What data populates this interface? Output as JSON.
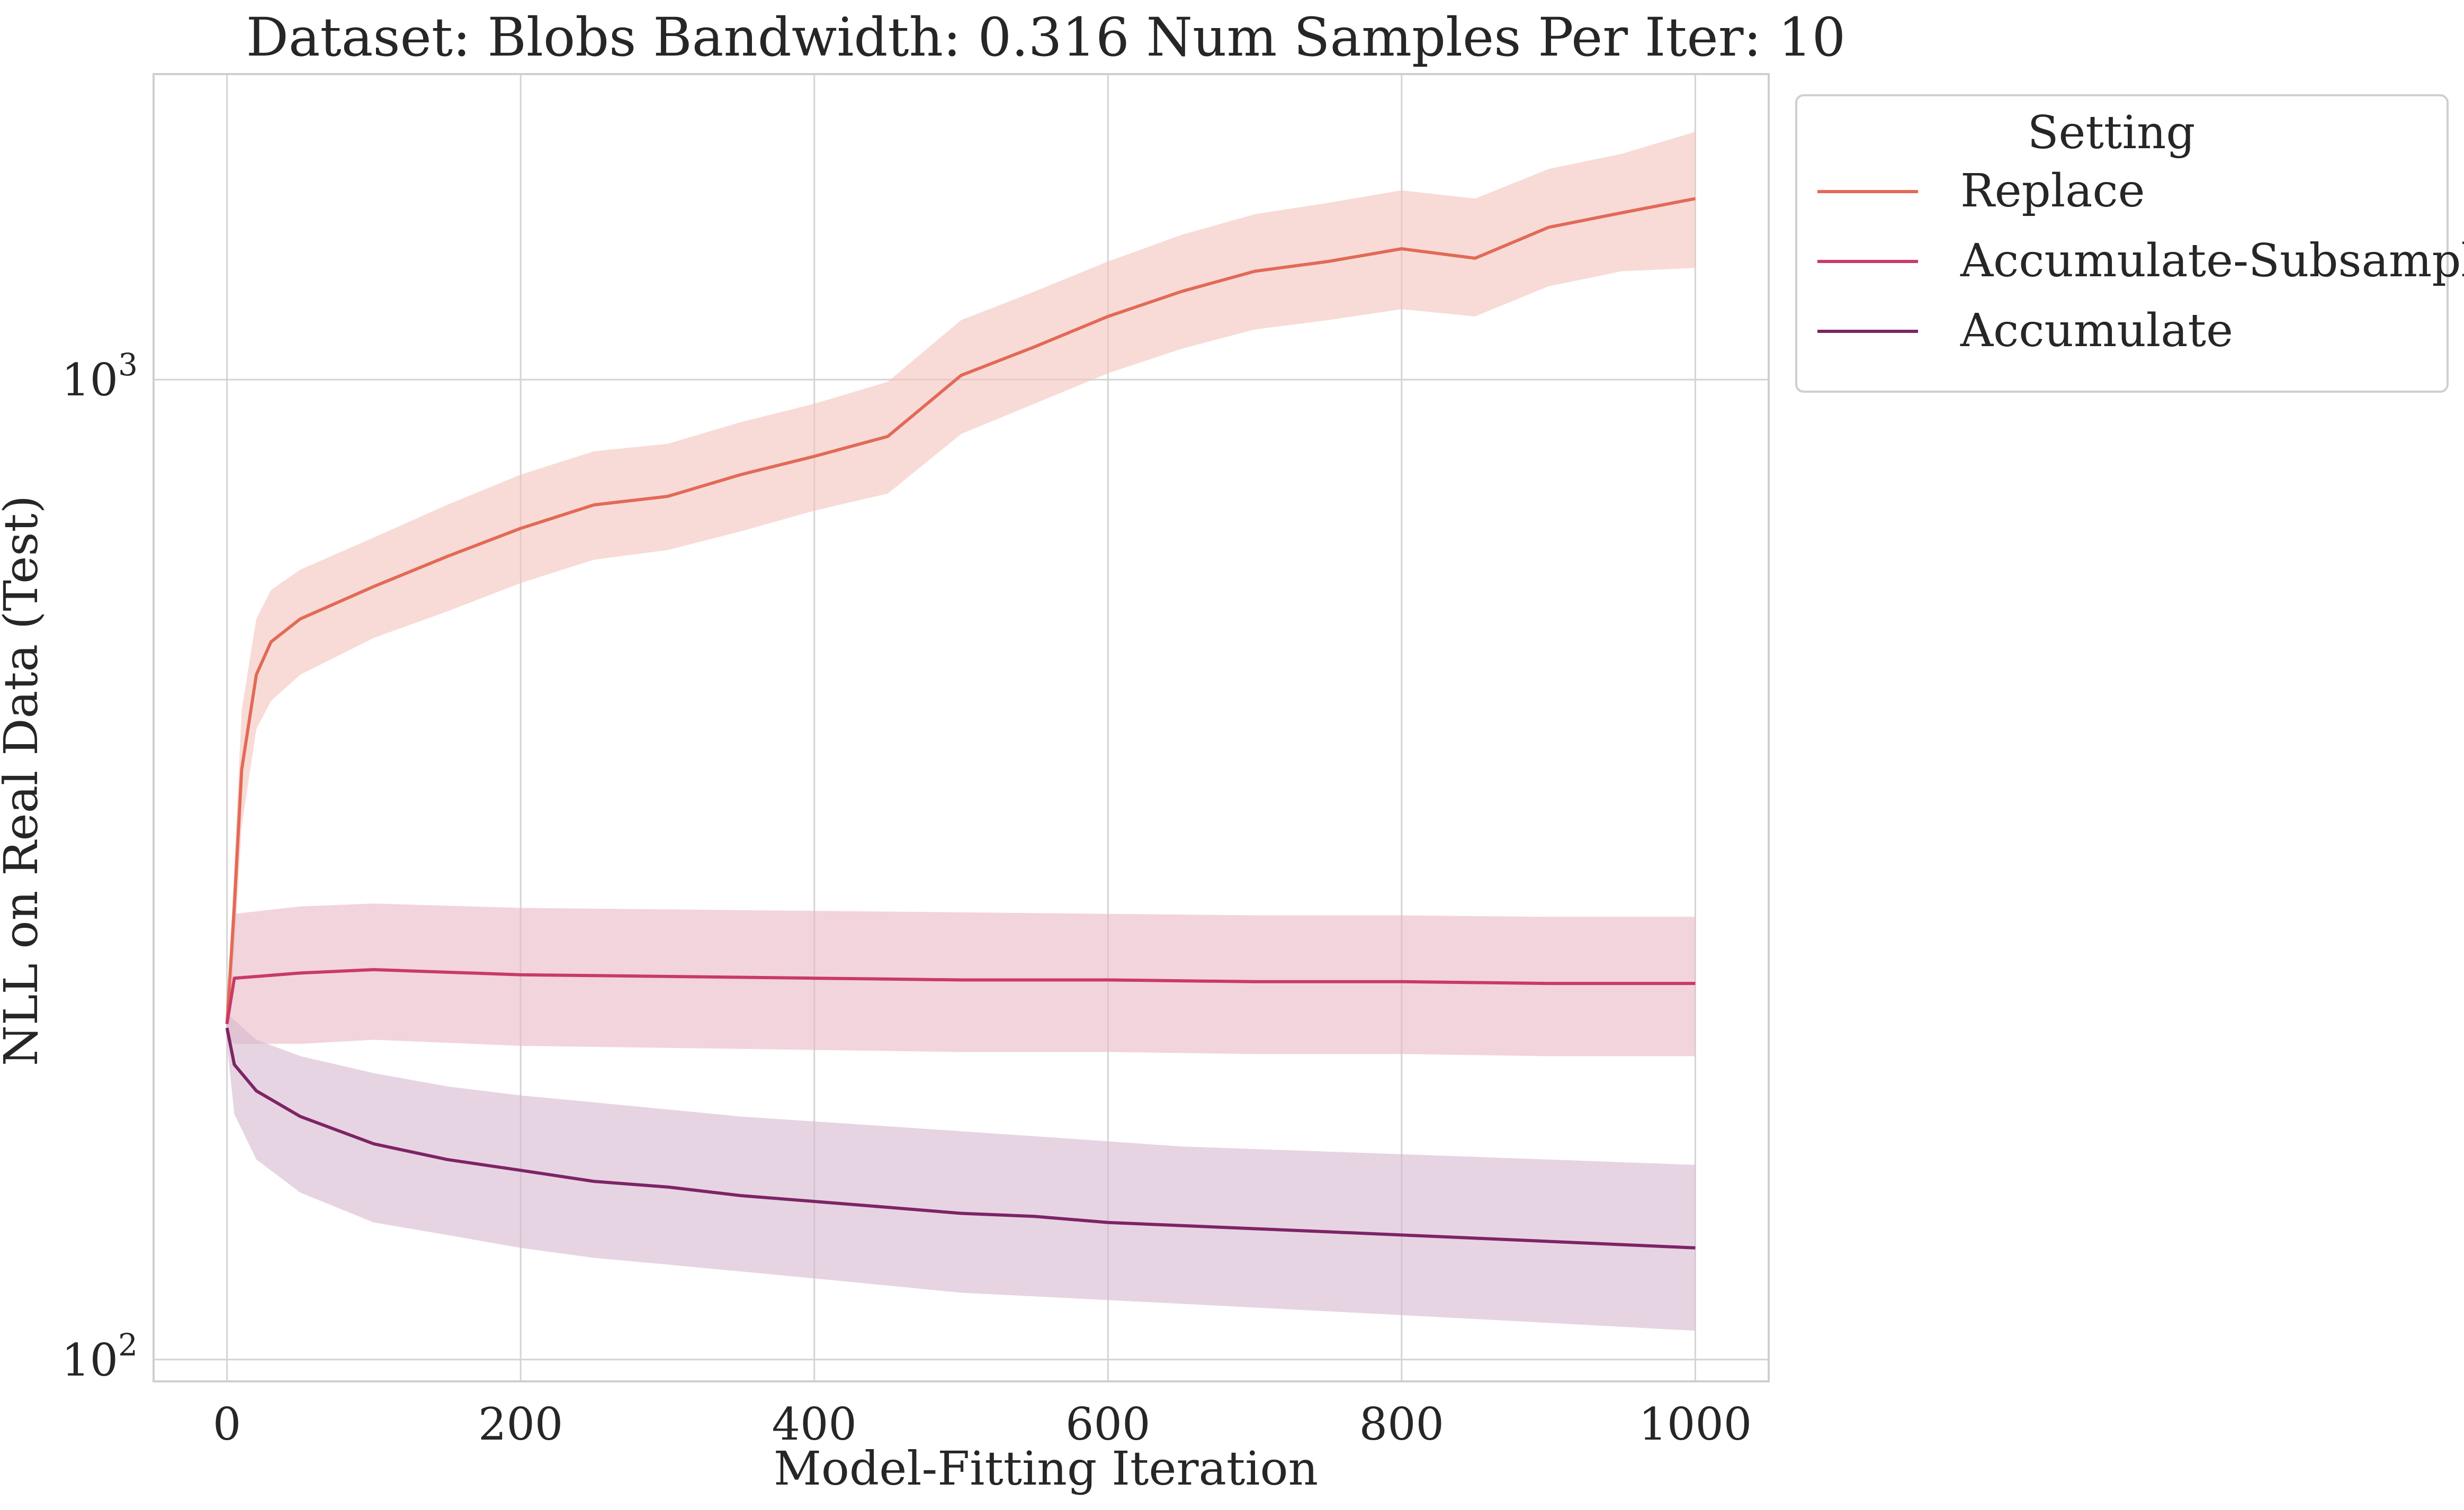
{
  "chart_data": {
    "type": "line",
    "title": "Dataset: Blobs Bandwidth: 0.316 Num Samples Per Iter: 10",
    "xlabel": "Model-Fitting Iteration",
    "ylabel": "NLL on Real Data (Test)",
    "xlim": [
      -50,
      1050
    ],
    "ylim": [
      95,
      2050
    ],
    "yscale": "log",
    "x_ticks": [
      0,
      200,
      400,
      600,
      800,
      1000
    ],
    "x_tick_labels": [
      "0",
      "200",
      "400",
      "600",
      "800",
      "1000"
    ],
    "y_ticks": [
      100,
      1000
    ],
    "y_tick_labels": [
      {
        "base": "10",
        "exp": "2"
      },
      {
        "base": "10",
        "exp": "3"
      }
    ],
    "grid": true,
    "legend": {
      "title": "Setting",
      "placement": "outside-top-right"
    },
    "series": [
      {
        "name": "Replace",
        "color": "#e26a57",
        "band_color": "#f3c3bb",
        "points": [
          {
            "x": 0,
            "y": 220,
            "lo": 215,
            "hi": 225
          },
          {
            "x": 5,
            "y": 290,
            "lo": 260,
            "hi": 320
          },
          {
            "x": 10,
            "y": 400,
            "lo": 350,
            "hi": 460
          },
          {
            "x": 20,
            "y": 500,
            "lo": 440,
            "hi": 570
          },
          {
            "x": 30,
            "y": 540,
            "lo": 470,
            "hi": 610
          },
          {
            "x": 50,
            "y": 570,
            "lo": 500,
            "hi": 640
          },
          {
            "x": 100,
            "y": 615,
            "lo": 545,
            "hi": 690
          },
          {
            "x": 150,
            "y": 660,
            "lo": 580,
            "hi": 745
          },
          {
            "x": 200,
            "y": 705,
            "lo": 620,
            "hi": 800
          },
          {
            "x": 250,
            "y": 745,
            "lo": 655,
            "hi": 845
          },
          {
            "x": 300,
            "y": 760,
            "lo": 670,
            "hi": 860
          },
          {
            "x": 350,
            "y": 800,
            "lo": 700,
            "hi": 905
          },
          {
            "x": 400,
            "y": 835,
            "lo": 735,
            "hi": 945
          },
          {
            "x": 450,
            "y": 875,
            "lo": 765,
            "hi": 995
          },
          {
            "x": 500,
            "y": 1010,
            "lo": 880,
            "hi": 1150
          },
          {
            "x": 550,
            "y": 1080,
            "lo": 945,
            "hi": 1230
          },
          {
            "x": 600,
            "y": 1160,
            "lo": 1015,
            "hi": 1320
          },
          {
            "x": 650,
            "y": 1230,
            "lo": 1075,
            "hi": 1405
          },
          {
            "x": 700,
            "y": 1290,
            "lo": 1125,
            "hi": 1475
          },
          {
            "x": 750,
            "y": 1320,
            "lo": 1150,
            "hi": 1515
          },
          {
            "x": 800,
            "y": 1360,
            "lo": 1180,
            "hi": 1560
          },
          {
            "x": 850,
            "y": 1330,
            "lo": 1160,
            "hi": 1530
          },
          {
            "x": 900,
            "y": 1430,
            "lo": 1245,
            "hi": 1640
          },
          {
            "x": 950,
            "y": 1480,
            "lo": 1290,
            "hi": 1700
          },
          {
            "x": 1000,
            "y": 1530,
            "lo": 1300,
            "hi": 1790
          }
        ]
      },
      {
        "name": "Accumulate-Subsample",
        "color": "#c93a67",
        "band_color": "#eab8c7",
        "points": [
          {
            "x": 0,
            "y": 220,
            "lo": 212,
            "hi": 228
          },
          {
            "x": 5,
            "y": 245,
            "lo": 210,
            "hi": 285
          },
          {
            "x": 50,
            "y": 248,
            "lo": 210,
            "hi": 290
          },
          {
            "x": 100,
            "y": 250,
            "lo": 212,
            "hi": 292
          },
          {
            "x": 200,
            "y": 247,
            "lo": 209,
            "hi": 289
          },
          {
            "x": 300,
            "y": 246,
            "lo": 208,
            "hi": 288
          },
          {
            "x": 400,
            "y": 245,
            "lo": 207,
            "hi": 287
          },
          {
            "x": 500,
            "y": 244,
            "lo": 206,
            "hi": 286
          },
          {
            "x": 600,
            "y": 244,
            "lo": 206,
            "hi": 285
          },
          {
            "x": 700,
            "y": 243,
            "lo": 205,
            "hi": 284
          },
          {
            "x": 800,
            "y": 243,
            "lo": 205,
            "hi": 284
          },
          {
            "x": 900,
            "y": 242,
            "lo": 204,
            "hi": 283
          },
          {
            "x": 1000,
            "y": 242,
            "lo": 204,
            "hi": 283
          }
        ]
      },
      {
        "name": "Accumulate",
        "color": "#7d2466",
        "band_color": "#d7b7cf",
        "points": [
          {
            "x": 0,
            "y": 218,
            "lo": 210,
            "hi": 226
          },
          {
            "x": 5,
            "y": 200,
            "lo": 178,
            "hi": 222
          },
          {
            "x": 20,
            "y": 188,
            "lo": 160,
            "hi": 212
          },
          {
            "x": 50,
            "y": 177,
            "lo": 148,
            "hi": 204
          },
          {
            "x": 100,
            "y": 166,
            "lo": 138,
            "hi": 196
          },
          {
            "x": 150,
            "y": 160,
            "lo": 134,
            "hi": 190
          },
          {
            "x": 200,
            "y": 156,
            "lo": 130,
            "hi": 186
          },
          {
            "x": 250,
            "y": 152,
            "lo": 127,
            "hi": 183
          },
          {
            "x": 300,
            "y": 150,
            "lo": 125,
            "hi": 180
          },
          {
            "x": 350,
            "y": 147,
            "lo": 123,
            "hi": 177
          },
          {
            "x": 400,
            "y": 145,
            "lo": 121,
            "hi": 175
          },
          {
            "x": 450,
            "y": 143,
            "lo": 119,
            "hi": 173
          },
          {
            "x": 500,
            "y": 141,
            "lo": 117,
            "hi": 171
          },
          {
            "x": 550,
            "y": 140,
            "lo": 116,
            "hi": 169
          },
          {
            "x": 600,
            "y": 138,
            "lo": 115,
            "hi": 167
          },
          {
            "x": 650,
            "y": 137,
            "lo": 114,
            "hi": 165
          },
          {
            "x": 700,
            "y": 136,
            "lo": 113,
            "hi": 164
          },
          {
            "x": 750,
            "y": 135,
            "lo": 112,
            "hi": 163
          },
          {
            "x": 800,
            "y": 134,
            "lo": 111,
            "hi": 162
          },
          {
            "x": 850,
            "y": 133,
            "lo": 110,
            "hi": 161
          },
          {
            "x": 900,
            "y": 132,
            "lo": 109,
            "hi": 160
          },
          {
            "x": 950,
            "y": 131,
            "lo": 108,
            "hi": 159
          },
          {
            "x": 1000,
            "y": 130,
            "lo": 107,
            "hi": 158
          }
        ]
      }
    ]
  }
}
